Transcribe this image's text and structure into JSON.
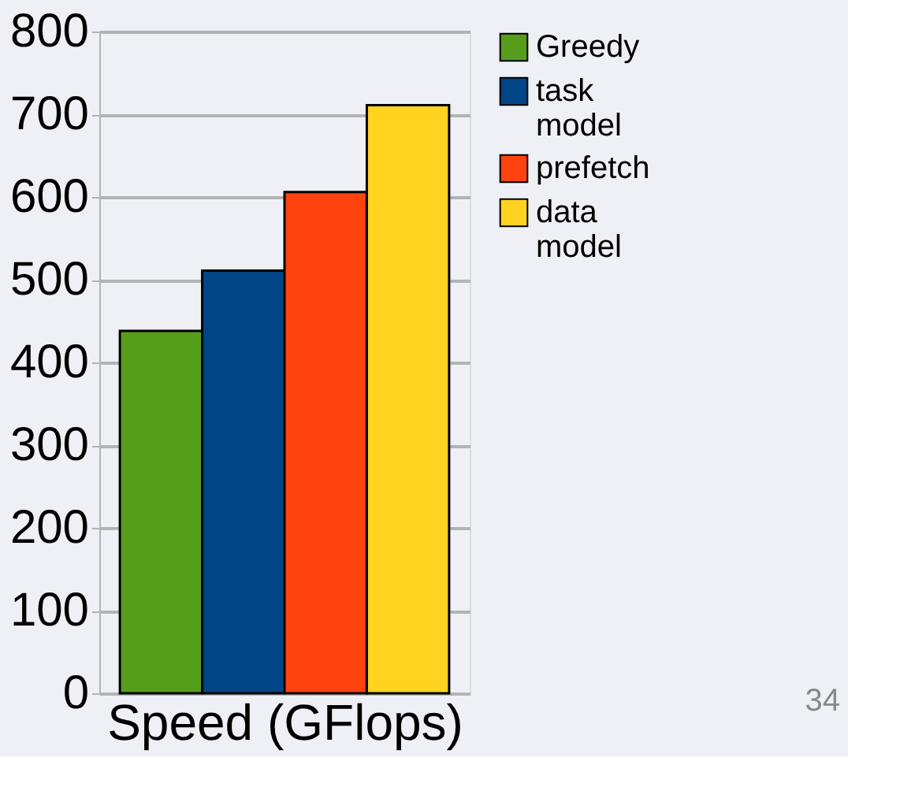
{
  "chart_data": {
    "type": "bar",
    "xlabel": "Speed (GFlops)",
    "categories": [
      null
    ],
    "series": [
      {
        "name": "Greedy",
        "color": "#579d1c",
        "values": [
          438
        ]
      },
      {
        "name": "task model",
        "color": "#004586",
        "values": [
          511
        ]
      },
      {
        "name": "prefetch",
        "color": "#ff420e",
        "values": [
          606
        ]
      },
      {
        "name": "data model",
        "color": "#ffd320",
        "values": [
          711
        ]
      }
    ],
    "ylim": [
      0,
      800
    ],
    "yticks": [
      0,
      100,
      200,
      300,
      400,
      500,
      600,
      700,
      800
    ],
    "grid": "y",
    "legend": "right",
    "annotations": [
      "34"
    ]
  }
}
